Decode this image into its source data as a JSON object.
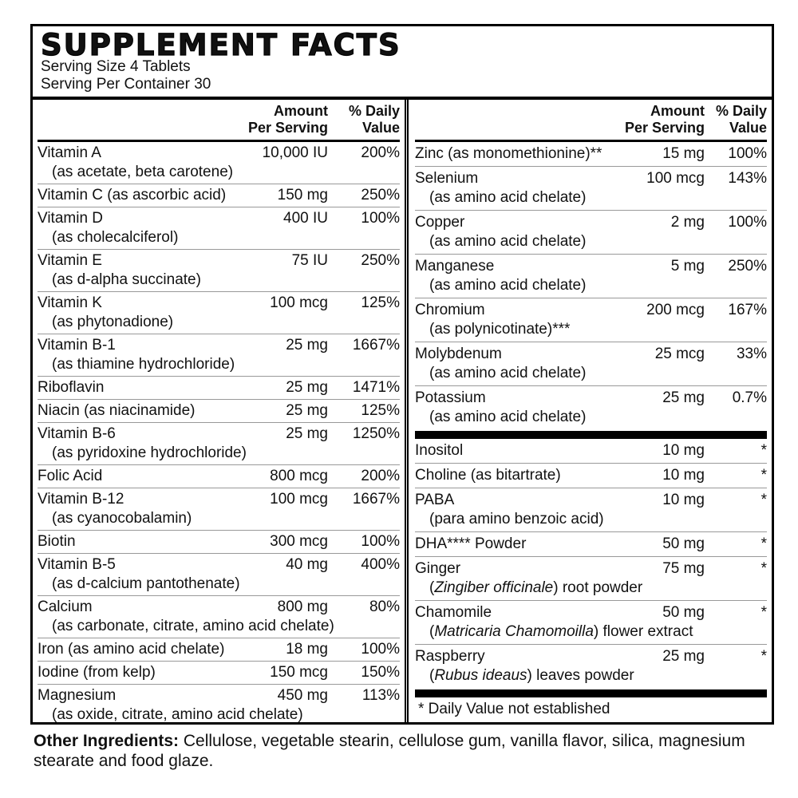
{
  "header": {
    "title": "SUPPLEMENT FACTS",
    "serving_size": "Serving Size 4 Tablets",
    "servings": "Serving Per Container 30"
  },
  "left_table": {
    "headers": {
      "amount": [
        "Amount",
        "Per Serving"
      ],
      "dv": [
        "% Daily",
        "Value"
      ]
    },
    "rows": [
      {
        "name": "Vitamin A",
        "sub": "(as acetate, beta carotene)",
        "amount": "10,000 IU",
        "dv": "200%"
      },
      {
        "name": "Vitamin C (as ascorbic acid)",
        "amount": "150 mg",
        "dv": "250%"
      },
      {
        "name": "Vitamin D",
        "sub": "(as cholecalciferol)",
        "amount": "400 IU",
        "dv": "100%"
      },
      {
        "name": "Vitamin E",
        "sub": "(as d-alpha succinate)",
        "amount": "75 IU",
        "dv": "250%"
      },
      {
        "name": "Vitamin K",
        "sub": "(as phytonadione)",
        "amount": "100 mcg",
        "dv": "125%"
      },
      {
        "name": "Vitamin B-1",
        "sub": "(as thiamine hydrochloride)",
        "amount": "25 mg",
        "dv": "1667%"
      },
      {
        "name": "Riboflavin",
        "amount": "25 mg",
        "dv": "1471%"
      },
      {
        "name": "Niacin (as niacinamide)",
        "amount": "25 mg",
        "dv": "125%"
      },
      {
        "name": "Vitamin B-6",
        "sub": "(as pyridoxine hydrochloride)",
        "amount": "25 mg",
        "dv": "1250%"
      },
      {
        "name": "Folic Acid",
        "amount": "800 mcg",
        "dv": "200%"
      },
      {
        "name": "Vitamin B-12",
        "sub": "(as cyanocobalamin)",
        "amount": "100 mcg",
        "dv": "1667%"
      },
      {
        "name": "Biotin",
        "amount": "300 mcg",
        "dv": "100%"
      },
      {
        "name": "Vitamin B-5",
        "sub": "(as d-calcium pantothenate)",
        "amount": "40 mg",
        "dv": "400%"
      },
      {
        "name": "Calcium",
        "sub": "(as carbonate, citrate, amino acid chelate)",
        "amount": "800 mg",
        "dv": "80%"
      },
      {
        "name": "Iron (as amino acid chelate)",
        "amount": "18 mg",
        "dv": "100%"
      },
      {
        "name": "Iodine (from kelp)",
        "amount": "150 mcg",
        "dv": "150%"
      },
      {
        "name": "Magnesium",
        "sub": "(as oxide, citrate, amino acid chelate)",
        "amount": "450 mg",
        "dv": "113%"
      }
    ]
  },
  "right_table": {
    "headers": {
      "amount": [
        "Amount",
        "Per Serving"
      ],
      "dv": [
        "% Daily",
        "Value"
      ]
    },
    "rows": [
      {
        "name": "Zinc (as monomethionine)**",
        "amount": "15 mg",
        "dv": "100%"
      },
      {
        "name": "Selenium",
        "sub": "(as amino acid chelate)",
        "amount": "100 mcg",
        "dv": "143%"
      },
      {
        "name": "Copper",
        "sub": "(as amino acid chelate)",
        "amount": "2 mg",
        "dv": "100%"
      },
      {
        "name": "Manganese",
        "sub": "(as amino acid chelate)",
        "amount": "5 mg",
        "dv": "250%"
      },
      {
        "name": "Chromium",
        "sub": "(as polynicotinate)***",
        "amount": "200 mcg",
        "dv": "167%"
      },
      {
        "name": "Molybdenum",
        "sub": "(as amino acid chelate)",
        "amount": "25 mcg",
        "dv": "33%"
      },
      {
        "name": "Potassium",
        "sub": "(as amino acid chelate)",
        "amount": "25 mg",
        "dv": "0.7%"
      }
    ],
    "other_rows": [
      {
        "name": "Inositol",
        "amount": "10 mg",
        "dv": "*"
      },
      {
        "name": "Choline (as bitartrate)",
        "amount": "10 mg",
        "dv": "*"
      },
      {
        "name": "PABA",
        "sub": "(para amino benzoic acid)",
        "amount": "10 mg",
        "dv": "*"
      },
      {
        "name": "DHA**** Powder",
        "amount": "50 mg",
        "dv": "*"
      },
      {
        "name": "Ginger",
        "sub": [
          "(",
          "Zingiber officinale",
          ") root powder"
        ],
        "amount": "75 mg",
        "dv": "*"
      },
      {
        "name": "Chamomile",
        "sub": [
          "(",
          "Matricaria Chamomoilla",
          ") flower extract"
        ],
        "amount": "50 mg",
        "dv": "*"
      },
      {
        "name": "Raspberry",
        "sub": [
          "(",
          "Rubus ideaus",
          ") leaves powder"
        ],
        "amount": "25 mg",
        "dv": "*"
      }
    ],
    "footnote": "* Daily Value not established"
  },
  "other_ingredients": {
    "label": "Other Ingredients:",
    "text": "Cellulose, vegetable stearin, cellulose gum, vanilla flavor, silica, magnesium stearate and food glaze."
  }
}
